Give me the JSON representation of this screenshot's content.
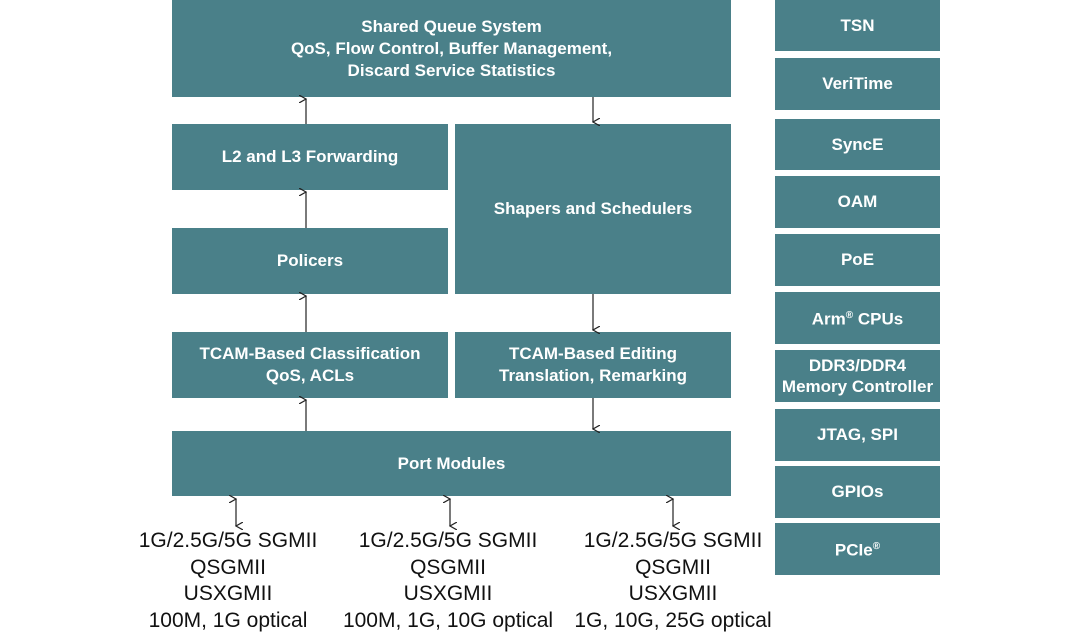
{
  "colors": {
    "block": "#4a8089",
    "text": "#ffffff",
    "arrow": "#222222"
  },
  "pipeline": {
    "shared_queue": [
      "Shared Queue System",
      "QoS, Flow Control, Buffer Management,",
      "Discard Service Statistics"
    ],
    "l2l3": [
      "L2 and L3 Forwarding"
    ],
    "policers": [
      "Policers"
    ],
    "shapers": [
      "Shapers and Schedulers"
    ],
    "tcam_class": [
      "TCAM-Based Classification",
      "QoS, ACLs"
    ],
    "tcam_edit": [
      "TCAM-Based Editing",
      "Translation, Remarking"
    ],
    "port_modules": [
      "Port Modules"
    ]
  },
  "interfaces": [
    [
      "1G/2.5G/5G SGMII",
      "QSGMII",
      "USXGMII",
      "100M, 1G optical"
    ],
    [
      "1G/2.5G/5G SGMII",
      "QSGMII",
      "USXGMII",
      "100M, 1G, 10G optical"
    ],
    [
      "1G/2.5G/5G SGMII",
      "QSGMII",
      "USXGMII",
      "1G, 10G, 25G optical"
    ]
  ],
  "features": {
    "tsn": "TSN",
    "veritime": "VeriTime",
    "synce": "SyncE",
    "oam": "OAM",
    "poe": "PoE",
    "arm": "Arm",
    "arm_sup": "®",
    "arm_rest": " CPUs",
    "ddr": [
      "DDR3/DDR4",
      "Memory Controller"
    ],
    "jtag": "JTAG, SPI",
    "gpios": "GPIOs",
    "pcie": "PCIe",
    "pcie_sup": "®"
  }
}
